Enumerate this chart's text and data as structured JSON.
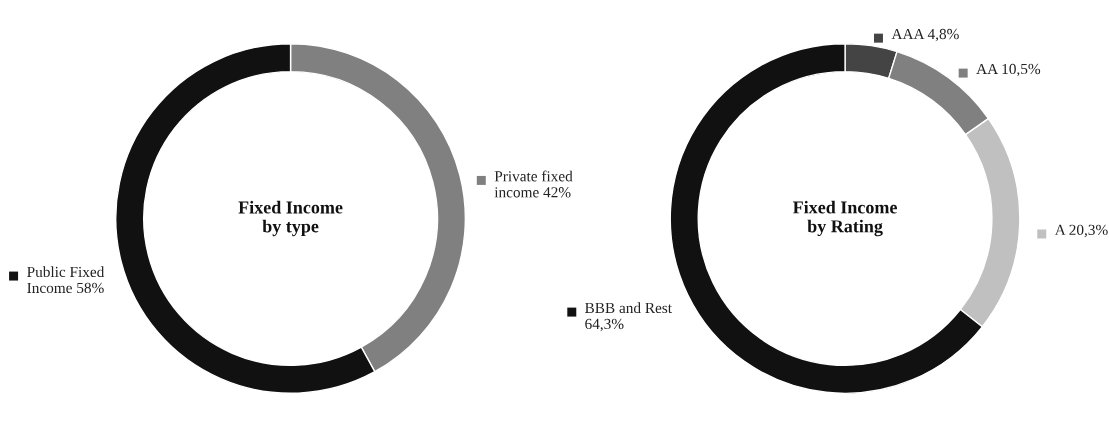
{
  "chart_data": [
    {
      "type": "donut",
      "title": "Fixed Income\nby type",
      "categories": [
        "Private fixed income",
        "Public Fixed Income"
      ],
      "values": [
        42,
        58
      ],
      "value_labels": [
        "42%",
        "58%"
      ],
      "colors": [
        "#808080",
        "#111111"
      ],
      "legend": "right"
    },
    {
      "type": "donut",
      "title": "Fixed Income\nby Rating",
      "categories": [
        "AAA",
        "AA",
        "A",
        "BBB and Rest"
      ],
      "values": [
        4.8,
        10.5,
        20.3,
        64.3
      ],
      "value_labels": [
        "4,8%",
        "10,5%",
        "20,3%",
        "64,3%"
      ],
      "colors": [
        "#444444",
        "#808080",
        "#c0c0c0",
        "#111111"
      ],
      "legend": "right"
    }
  ]
}
